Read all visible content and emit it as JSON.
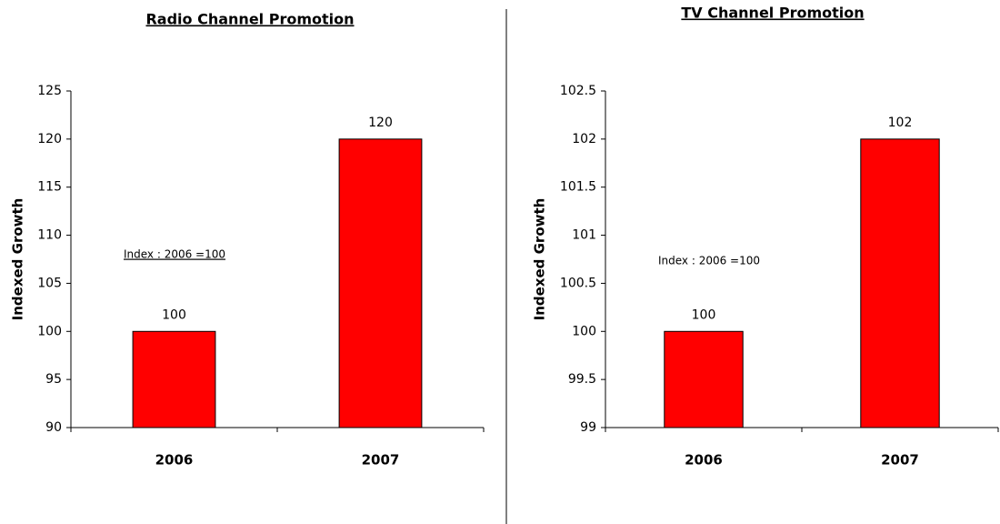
{
  "chart_data": [
    {
      "type": "bar",
      "title": "Radio Channel Promotion",
      "y_label": "Indexed Growth",
      "annotation": "Index : 2006 =100",
      "categories": [
        "2006",
        "2007"
      ],
      "values": [
        100,
        120
      ],
      "color": "#ff0000",
      "ylim": [
        90,
        125
      ],
      "yticks": [
        90,
        95,
        100,
        105,
        110,
        115,
        120,
        125
      ]
    },
    {
      "type": "bar",
      "title": "TV Channel Promotion",
      "y_label": "Indexed Growth",
      "annotation": "Index : 2006 =100",
      "categories": [
        "2006",
        "2007"
      ],
      "values": [
        100,
        102
      ],
      "color": "#ff0000",
      "ylim": [
        99,
        102.5
      ],
      "yticks": [
        99,
        99.5,
        100,
        100.5,
        101,
        101.5,
        102,
        102.5
      ]
    }
  ]
}
